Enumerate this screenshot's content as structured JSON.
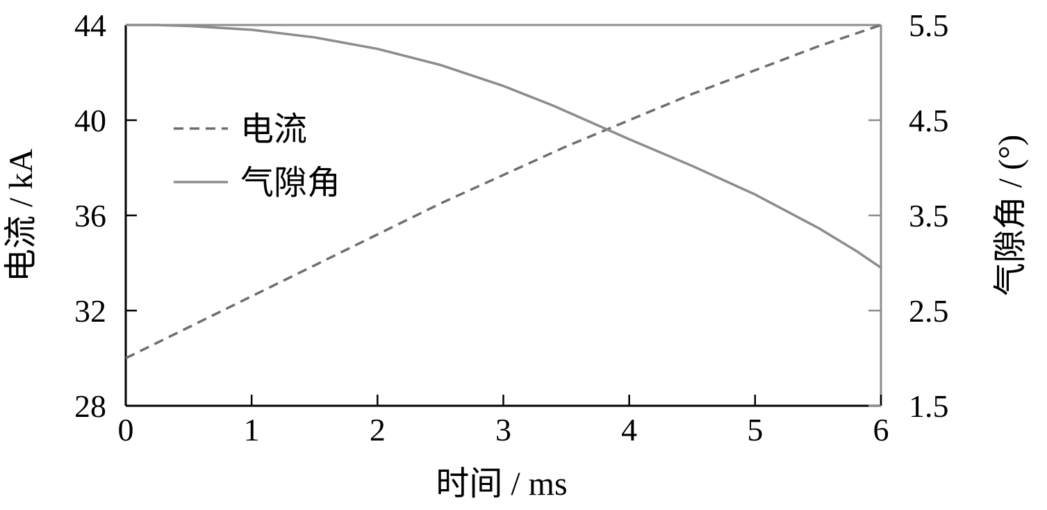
{
  "chart_data": {
    "type": "line",
    "title": "",
    "xlabel": "时间 / ms",
    "ylabel_left": "电流 / kA",
    "ylabel_right": "气隙角 / (°)",
    "x_ticks": [
      "0",
      "1",
      "2",
      "3",
      "4",
      "5",
      "6"
    ],
    "y_left_ticks": [
      "28",
      "32",
      "36",
      "40",
      "44"
    ],
    "y_right_ticks": [
      "1.5",
      "2.5",
      "3.5",
      "4.5",
      "5.5"
    ],
    "xlim": [
      0,
      6
    ],
    "ylim_left": [
      28,
      44
    ],
    "ylim_right": [
      1.5,
      5.5
    ],
    "grid": false,
    "legend_position": "upper-left",
    "series": [
      {
        "name": "电流",
        "axis": "left",
        "style": "dashed",
        "color": "#6e6e6e",
        "x": [
          0,
          0.5,
          1,
          1.5,
          2,
          2.5,
          3,
          3.5,
          4,
          4.5,
          5,
          5.5,
          6
        ],
        "y": [
          30.0,
          31.3,
          32.6,
          33.9,
          35.2,
          36.5,
          37.7,
          38.9,
          40.0,
          41.1,
          42.1,
          43.1,
          44.0
        ]
      },
      {
        "name": "气隙角",
        "axis": "right",
        "style": "solid",
        "color": "#8c8c8c",
        "x": [
          0,
          0.25,
          0.5,
          1,
          1.5,
          2,
          2.5,
          3,
          3.4,
          4,
          4.5,
          5,
          5.5,
          5.8,
          6
        ],
        "y": [
          5.5,
          5.5,
          5.49,
          5.45,
          5.37,
          5.25,
          5.08,
          4.86,
          4.65,
          4.3,
          4.02,
          3.72,
          3.37,
          3.13,
          2.95
        ]
      }
    ]
  }
}
